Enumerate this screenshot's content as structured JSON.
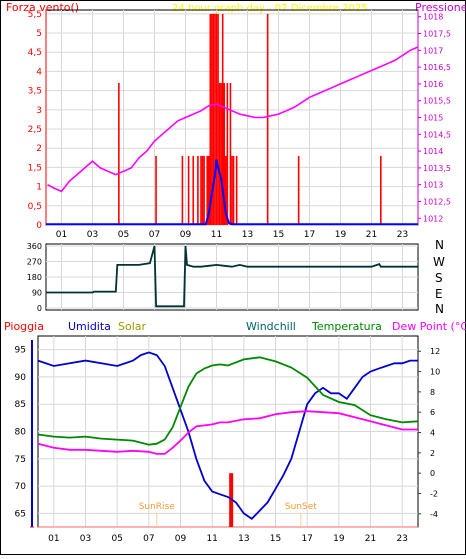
{
  "top_panel": {
    "left_title": "Forza vento()",
    "center_title": "24 hour graph day - 07 Dicembre 2025",
    "right_title": "Pressione",
    "colors": {
      "left_title": "#ff0000",
      "center_title": "#ffff00",
      "right_title": "#cc00cc"
    }
  },
  "middle_panel": {
    "compass_labels": [
      "N",
      "W",
      "S",
      "E",
      "N"
    ]
  },
  "bottom_panel": {
    "legend": [
      {
        "label": "Pioggia",
        "color": "#ff0000"
      },
      {
        "label": "Umidita",
        "color": "#0000cc"
      },
      {
        "label": "Solar",
        "color": "#999900"
      },
      {
        "label": "Windchill",
        "color": "#006666"
      },
      {
        "label": "Temperatura",
        "color": "#008800"
      },
      {
        "label": "Dew Point (°C)",
        "color": "#ff00ff"
      }
    ],
    "annotations": [
      "SunRise",
      "SunSet"
    ]
  },
  "chart_data": [
    {
      "type": "line",
      "name": "wind-pressure",
      "x_ticks": [
        "01",
        "03",
        "05",
        "07",
        "09",
        "11",
        "13",
        "15",
        "17",
        "19",
        "21",
        "23"
      ],
      "y_left_ticks": [
        "0",
        "0,5",
        "1",
        "1,5",
        "2",
        "2,5",
        "3",
        "3,5",
        "4",
        "4,5",
        "5",
        "5,5"
      ],
      "y_left_range": [
        0,
        5.6
      ],
      "y_right_ticks": [
        "1012",
        "1012,5",
        "1013",
        "1013,5",
        "1014",
        "1014,5",
        "1015",
        "1015,5",
        "1016",
        "1016,5",
        "1017",
        "1017,5",
        "1018"
      ],
      "y_right_range": [
        1011.8,
        1018.2
      ],
      "pressure": {
        "color": "#ff00ff",
        "x": [
          0.1,
          0.5,
          1.0,
          1.5,
          2.0,
          2.5,
          3.0,
          3.5,
          4.0,
          4.5,
          5.0,
          5.5,
          6.0,
          6.5,
          7.0,
          7.5,
          8.0,
          8.5,
          9.0,
          9.5,
          10.0,
          10.5,
          11.0,
          11.5,
          12.0,
          12.5,
          13.0,
          13.5,
          14.0,
          14.5,
          15.0,
          15.5,
          16.0,
          16.5,
          17.0,
          17.5,
          18.0,
          18.5,
          19.0,
          19.5,
          20.0,
          20.5,
          21.0,
          21.5,
          22.0,
          22.5,
          23.0,
          23.5,
          24.0
        ],
        "y": [
          1013.0,
          1012.9,
          1012.8,
          1013.1,
          1013.3,
          1013.5,
          1013.7,
          1013.5,
          1013.4,
          1013.3,
          1013.4,
          1013.5,
          1013.8,
          1014.0,
          1014.3,
          1014.5,
          1014.7,
          1014.9,
          1015.0,
          1015.1,
          1015.2,
          1015.35,
          1015.4,
          1015.3,
          1015.2,
          1015.1,
          1015.05,
          1015.0,
          1015.0,
          1015.05,
          1015.1,
          1015.2,
          1015.3,
          1015.45,
          1015.6,
          1015.7,
          1015.8,
          1015.9,
          1016.0,
          1016.1,
          1016.2,
          1016.3,
          1016.4,
          1016.5,
          1016.6,
          1016.7,
          1016.85,
          1017.0,
          1017.1
        ]
      },
      "wind_bars": {
        "color": "#ff0000",
        "x": [
          4.7,
          7.1,
          8.8,
          9.2,
          9.5,
          9.8,
          10.0,
          10.1,
          10.2,
          10.4,
          10.5,
          10.6,
          10.7,
          10.8,
          10.9,
          11.0,
          11.1,
          11.2,
          11.3,
          11.4,
          11.5,
          11.6,
          11.7,
          11.9,
          12.0,
          12.1,
          12.3,
          14.3,
          16.3,
          21.6
        ],
        "y": [
          3.7,
          1.8,
          1.8,
          1.8,
          1.8,
          1.8,
          1.8,
          1.8,
          1.8,
          1.8,
          1.8,
          5.5,
          5.5,
          5.5,
          5.5,
          5.5,
          5.5,
          3.7,
          3.7,
          5.5,
          3.7,
          1.8,
          3.7,
          3.7,
          1.8,
          1.8,
          1.8,
          5.5,
          1.8,
          1.8
        ]
      },
      "wind_speed_line": {
        "color": "#0000ff",
        "x": [
          0.0,
          10.3,
          10.5,
          10.7,
          10.9,
          11.0,
          11.1,
          11.3,
          11.5,
          11.6,
          11.8,
          12.0,
          24.0
        ],
        "y": [
          0.02,
          0.02,
          0.3,
          0.8,
          1.3,
          1.7,
          1.5,
          1.2,
          0.6,
          0.3,
          0.05,
          0.02,
          0.02
        ]
      }
    },
    {
      "type": "line",
      "name": "wind-direction",
      "y_ticks": [
        "0",
        "90",
        "180",
        "270",
        "360"
      ],
      "y_range": [
        0,
        360
      ],
      "series": [
        {
          "color": "#003333",
          "x": [
            0.0,
            3.0,
            3.1,
            4.5,
            4.6,
            6.0,
            6.7,
            7.0,
            7.1,
            7.2,
            7.8,
            8.5,
            8.9,
            9.0,
            9.1,
            9.3,
            9.5,
            10.0,
            10.5,
            11.0,
            11.5,
            12.0,
            12.5,
            13.0,
            13.5,
            14.0,
            15.0,
            16.0,
            17.0,
            18.0,
            19.0,
            20.0,
            21.0,
            21.5,
            21.6,
            22.0,
            23.0,
            24.0
          ],
          "y": [
            90,
            90,
            95,
            95,
            250,
            250,
            260,
            360,
            10,
            10,
            10,
            10,
            10,
            360,
            250,
            245,
            240,
            240,
            245,
            250,
            245,
            240,
            250,
            240,
            240,
            240,
            240,
            240,
            240,
            240,
            240,
            240,
            240,
            255,
            240,
            240,
            240,
            240
          ]
        }
      ]
    },
    {
      "type": "line",
      "name": "humidity-temperature",
      "y_left_ticks": [
        "65",
        "70",
        "75",
        "80",
        "85",
        "90",
        "95"
      ],
      "y_left_range": [
        62.5,
        97.5
      ],
      "y_right_ticks": [
        "-4",
        "-2",
        "0",
        "2",
        "4",
        "6",
        "8",
        "10",
        "12"
      ],
      "y_right_range": [
        -5.3,
        13.5
      ],
      "series": [
        {
          "name": "Umidita",
          "axis": "left",
          "color": "#0000cc",
          "x": [
            0.0,
            1.0,
            2.0,
            3.0,
            4.0,
            5.0,
            6.0,
            6.5,
            7.0,
            7.5,
            8.0,
            8.5,
            9.0,
            9.5,
            10.0,
            10.5,
            11.0,
            11.5,
            12.0,
            12.5,
            13.0,
            13.5,
            14.0,
            14.5,
            15.0,
            15.5,
            16.0,
            16.5,
            17.0,
            17.5,
            18.0,
            18.5,
            19.0,
            19.5,
            20.0,
            20.5,
            21.0,
            21.5,
            22.0,
            22.5,
            23.0,
            23.5,
            24.0
          ],
          "y": [
            93,
            92,
            92.5,
            93,
            92.5,
            92,
            93,
            94,
            94.5,
            94,
            92,
            88,
            84,
            80,
            75,
            71,
            69,
            68.5,
            68,
            67,
            65,
            64,
            65.5,
            67,
            69.5,
            72,
            75,
            80,
            85,
            87,
            88,
            87,
            87,
            86,
            88,
            90,
            91,
            91.5,
            92,
            92.5,
            92.5,
            93,
            93
          ]
        },
        {
          "name": "Temperatura",
          "axis": "right",
          "color": "#008800",
          "x": [
            0.0,
            1.0,
            2.0,
            3.0,
            4.0,
            5.0,
            6.0,
            7.0,
            7.5,
            8.0,
            8.5,
            9.0,
            9.5,
            10.0,
            10.5,
            11.0,
            11.5,
            12.0,
            13.0,
            14.0,
            15.0,
            16.0,
            17.0,
            18.0,
            19.0,
            20.0,
            21.0,
            22.0,
            23.0,
            24.0
          ],
          "y": [
            3.8,
            3.6,
            3.5,
            3.6,
            3.4,
            3.3,
            3.2,
            2.8,
            2.9,
            3.3,
            4.5,
            6.5,
            8.5,
            9.8,
            10.3,
            10.6,
            10.7,
            10.6,
            11.2,
            11.4,
            11.0,
            10.4,
            9.4,
            7.7,
            7.0,
            6.7,
            5.7,
            5.3,
            5.0,
            5.1
          ]
        },
        {
          "name": "Dew Point (°C)",
          "axis": "right",
          "color": "#ff00ff",
          "x": [
            0.0,
            1.0,
            2.0,
            3.0,
            4.0,
            5.0,
            6.0,
            7.0,
            7.5,
            8.0,
            8.5,
            9.0,
            9.5,
            10.0,
            10.5,
            11.0,
            11.5,
            12.0,
            13.0,
            14.0,
            15.0,
            16.0,
            17.0,
            18.0,
            19.0,
            20.0,
            21.0,
            22.0,
            23.0,
            24.0
          ],
          "y": [
            2.9,
            2.5,
            2.3,
            2.3,
            2.2,
            2.1,
            2.2,
            2.1,
            1.9,
            1.9,
            2.5,
            3.2,
            4.0,
            4.6,
            4.7,
            4.8,
            5.0,
            5.0,
            5.3,
            5.4,
            5.8,
            6.0,
            6.1,
            6.0,
            5.9,
            5.5,
            5.1,
            4.7,
            4.3,
            4.3
          ]
        }
      ],
      "rain_bars": {
        "color": "#ff0000",
        "x": [
          12.2
        ],
        "y": [
          -3.9
        ]
      },
      "sun_events": [
        {
          "label": "SunRise",
          "x": 7.5
        },
        {
          "label": "SunSet",
          "x": 16.6
        }
      ]
    }
  ]
}
